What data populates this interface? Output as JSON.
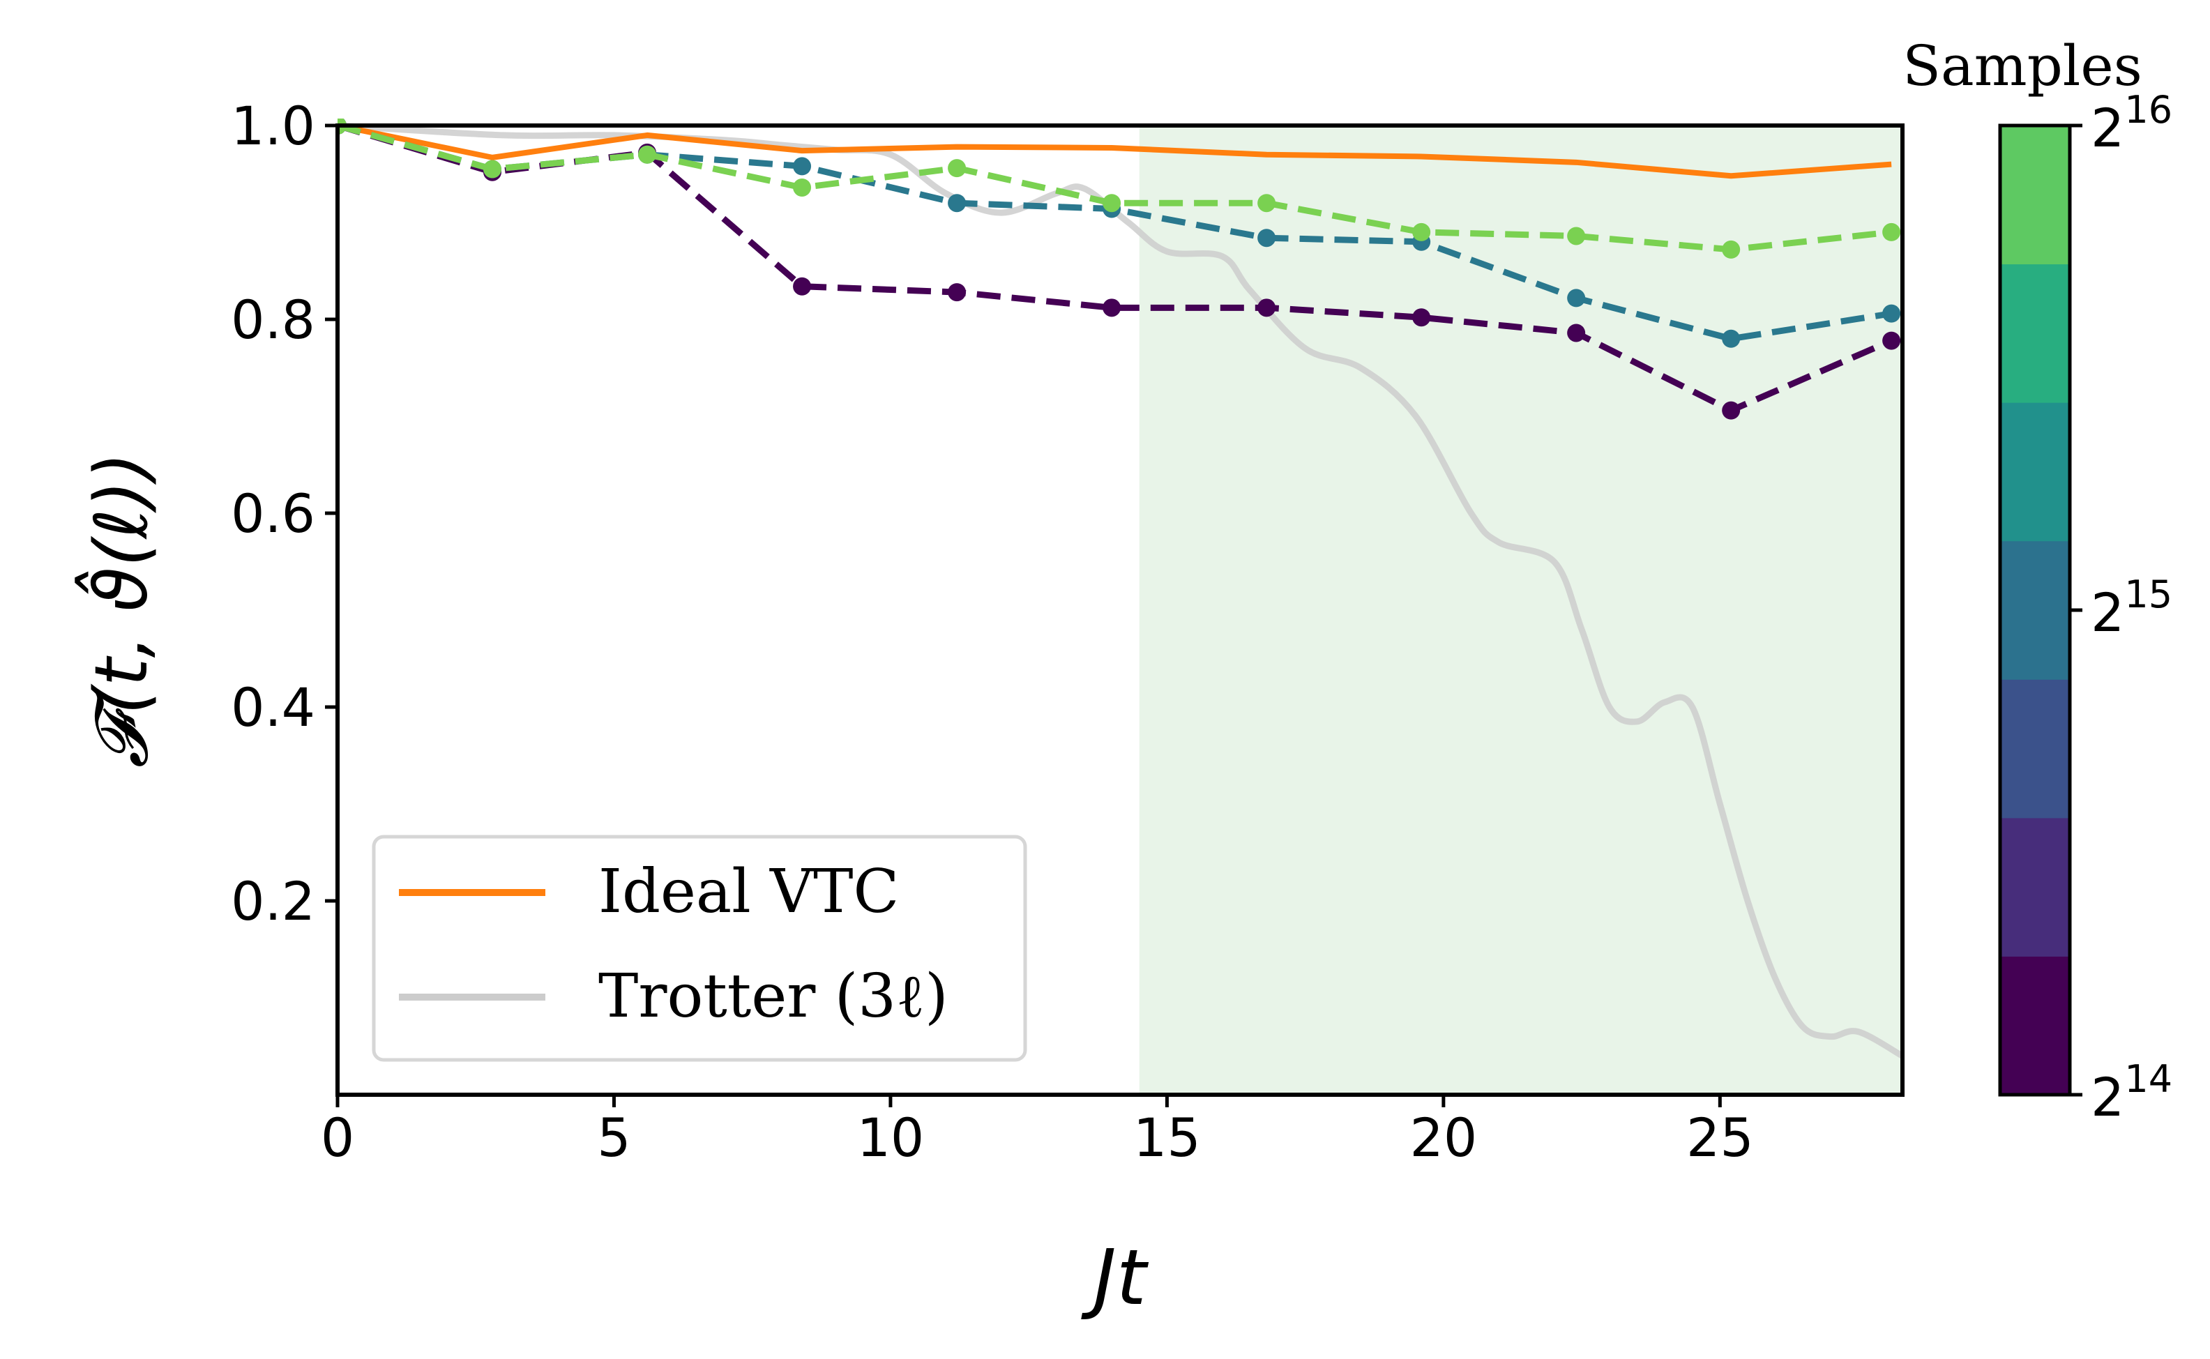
{
  "chart_data": {
    "type": "line",
    "x": [
      0,
      2.8,
      5.6,
      8.4,
      11.2,
      14.0,
      16.8,
      19.6,
      22.4,
      25.2,
      28.1
    ],
    "xlabel": "Jt",
    "ylabel": "𝓕(t, ϑ̂(ℓ))",
    "xlim": [
      0,
      28.3
    ],
    "ylim": [
      0,
      1.0
    ],
    "xticks": [
      0,
      5,
      10,
      15,
      20,
      25
    ],
    "yticks": [
      0.2,
      0.4,
      0.6,
      0.8,
      1.0
    ],
    "xtick_labels": [
      "0",
      "5",
      "10",
      "15",
      "20",
      "25"
    ],
    "ytick_labels": [
      "0.2",
      "0.4",
      "0.6",
      "0.8",
      "1.0"
    ],
    "shaded_region": {
      "x_start": 14.5,
      "x_end": 28.3,
      "color": "#e8f4e8"
    },
    "legend": {
      "placement": "lower-left",
      "entries": [
        {
          "label": "Ideal VTC",
          "color": "#ff7f0e"
        },
        {
          "label": "Trotter (3ℓ)",
          "color": "#cccccc"
        }
      ]
    },
    "series": [
      {
        "name": "Ideal VTC",
        "style": "solid",
        "color": "#ff7f0e",
        "x": [
          0,
          2.8,
          5.6,
          8.4,
          11.2,
          14.0,
          16.8,
          19.6,
          22.4,
          25.2,
          28.1
        ],
        "values": [
          1.0,
          0.967,
          0.99,
          0.974,
          0.978,
          0.977,
          0.97,
          0.968,
          0.962,
          0.948,
          0.96
        ]
      },
      {
        "name": "Trotter (3ℓ)",
        "style": "solid",
        "color": "#cccccc",
        "x": [
          0,
          3,
          5,
          7,
          8,
          9,
          10,
          11,
          12,
          13,
          13.5,
          14.3,
          15,
          16,
          16.5,
          17.5,
          18.5,
          19.5,
          20.5,
          21,
          22,
          22.5,
          23,
          23.5,
          24,
          24.5,
          25,
          25.5,
          26,
          26.5,
          27,
          27.5,
          28.3
        ],
        "values": [
          1.0,
          0.99,
          0.99,
          0.985,
          0.98,
          0.975,
          0.97,
          0.93,
          0.91,
          0.93,
          0.935,
          0.9,
          0.87,
          0.865,
          0.83,
          0.77,
          0.75,
          0.7,
          0.6,
          0.57,
          0.55,
          0.48,
          0.4,
          0.385,
          0.405,
          0.4,
          0.3,
          0.2,
          0.12,
          0.07,
          0.06,
          0.065,
          0.04
        ]
      },
      {
        "name": "2^14",
        "style": "dashed",
        "color": "#440154",
        "x": [
          0,
          2.8,
          5.6,
          8.4,
          11.2,
          14.0,
          16.8,
          19.6,
          22.4,
          25.2,
          28.1
        ],
        "values": [
          1.0,
          0.952,
          0.972,
          0.834,
          0.828,
          0.812,
          0.812,
          0.802,
          0.786,
          0.706,
          0.778
        ]
      },
      {
        "name": "2^15",
        "style": "dashed",
        "color": "#2a788e",
        "x": [
          0,
          2.8,
          5.6,
          8.4,
          11.2,
          14.0,
          16.8,
          19.6,
          22.4,
          25.2,
          28.1
        ],
        "values": [
          1.0,
          0.955,
          0.97,
          0.958,
          0.92,
          0.914,
          0.884,
          0.88,
          0.822,
          0.78,
          0.806
        ]
      },
      {
        "name": "2^16",
        "style": "dashed",
        "color": "#7ad151",
        "x": [
          0,
          2.8,
          5.6,
          8.4,
          11.2,
          14.0,
          16.8,
          19.6,
          22.4,
          25.2,
          28.1
        ],
        "values": [
          1.0,
          0.955,
          0.97,
          0.936,
          0.956,
          0.92,
          0.92,
          0.89,
          0.886,
          0.872,
          0.89
        ]
      }
    ],
    "colorbar": {
      "title": "Samples",
      "colors": [
        "#440154",
        "#472d7b",
        "#3b528b",
        "#2c728e",
        "#21918c",
        "#28ae80",
        "#5ec962"
      ],
      "ticks": [
        {
          "base": "2",
          "exp": "14",
          "frac": 0
        },
        {
          "base": "2",
          "exp": "15",
          "frac": 0.5
        },
        {
          "base": "2",
          "exp": "16",
          "frac": 1
        }
      ]
    }
  }
}
